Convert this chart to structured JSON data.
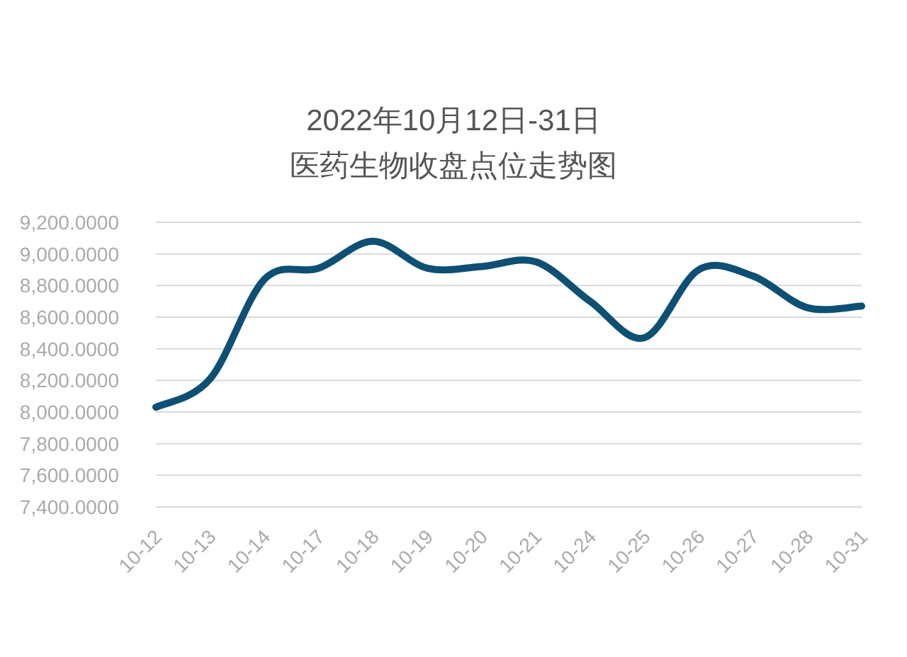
{
  "chart_data": {
    "type": "line",
    "title": "2022年10月12日-31日",
    "subtitle": "医药生物收盘点位走势图",
    "categories": [
      "10-12",
      "10-13",
      "10-14",
      "10-17",
      "10-18",
      "10-19",
      "10-20",
      "10-21",
      "10-24",
      "10-25",
      "10-26",
      "10-27",
      "10-28",
      "10-31"
    ],
    "series": [
      {
        "color": "#0e4f74",
        "values": [
          8030,
          8210,
          8840,
          8910,
          9080,
          8910,
          8920,
          8950,
          8700,
          8470,
          8900,
          8860,
          8660,
          8670
        ]
      }
    ],
    "ylim": [
      7400,
      9200
    ],
    "yticks": [
      {
        "value": 7400,
        "label": "7,400.0000"
      },
      {
        "value": 7600,
        "label": "7,600.0000"
      },
      {
        "value": 7800,
        "label": "7,800.0000"
      },
      {
        "value": 8000,
        "label": "8,000.0000"
      },
      {
        "value": 8200,
        "label": "8,200.0000"
      },
      {
        "value": 8400,
        "label": "8,400.0000"
      },
      {
        "value": 8600,
        "label": "8,600.0000"
      },
      {
        "value": 8800,
        "label": "8,800.0000"
      },
      {
        "value": 9000,
        "label": "9,000.0000"
      },
      {
        "value": 9200,
        "label": "9,200.0000"
      }
    ],
    "grid": "y",
    "marker": "none",
    "line_style": "solid"
  }
}
